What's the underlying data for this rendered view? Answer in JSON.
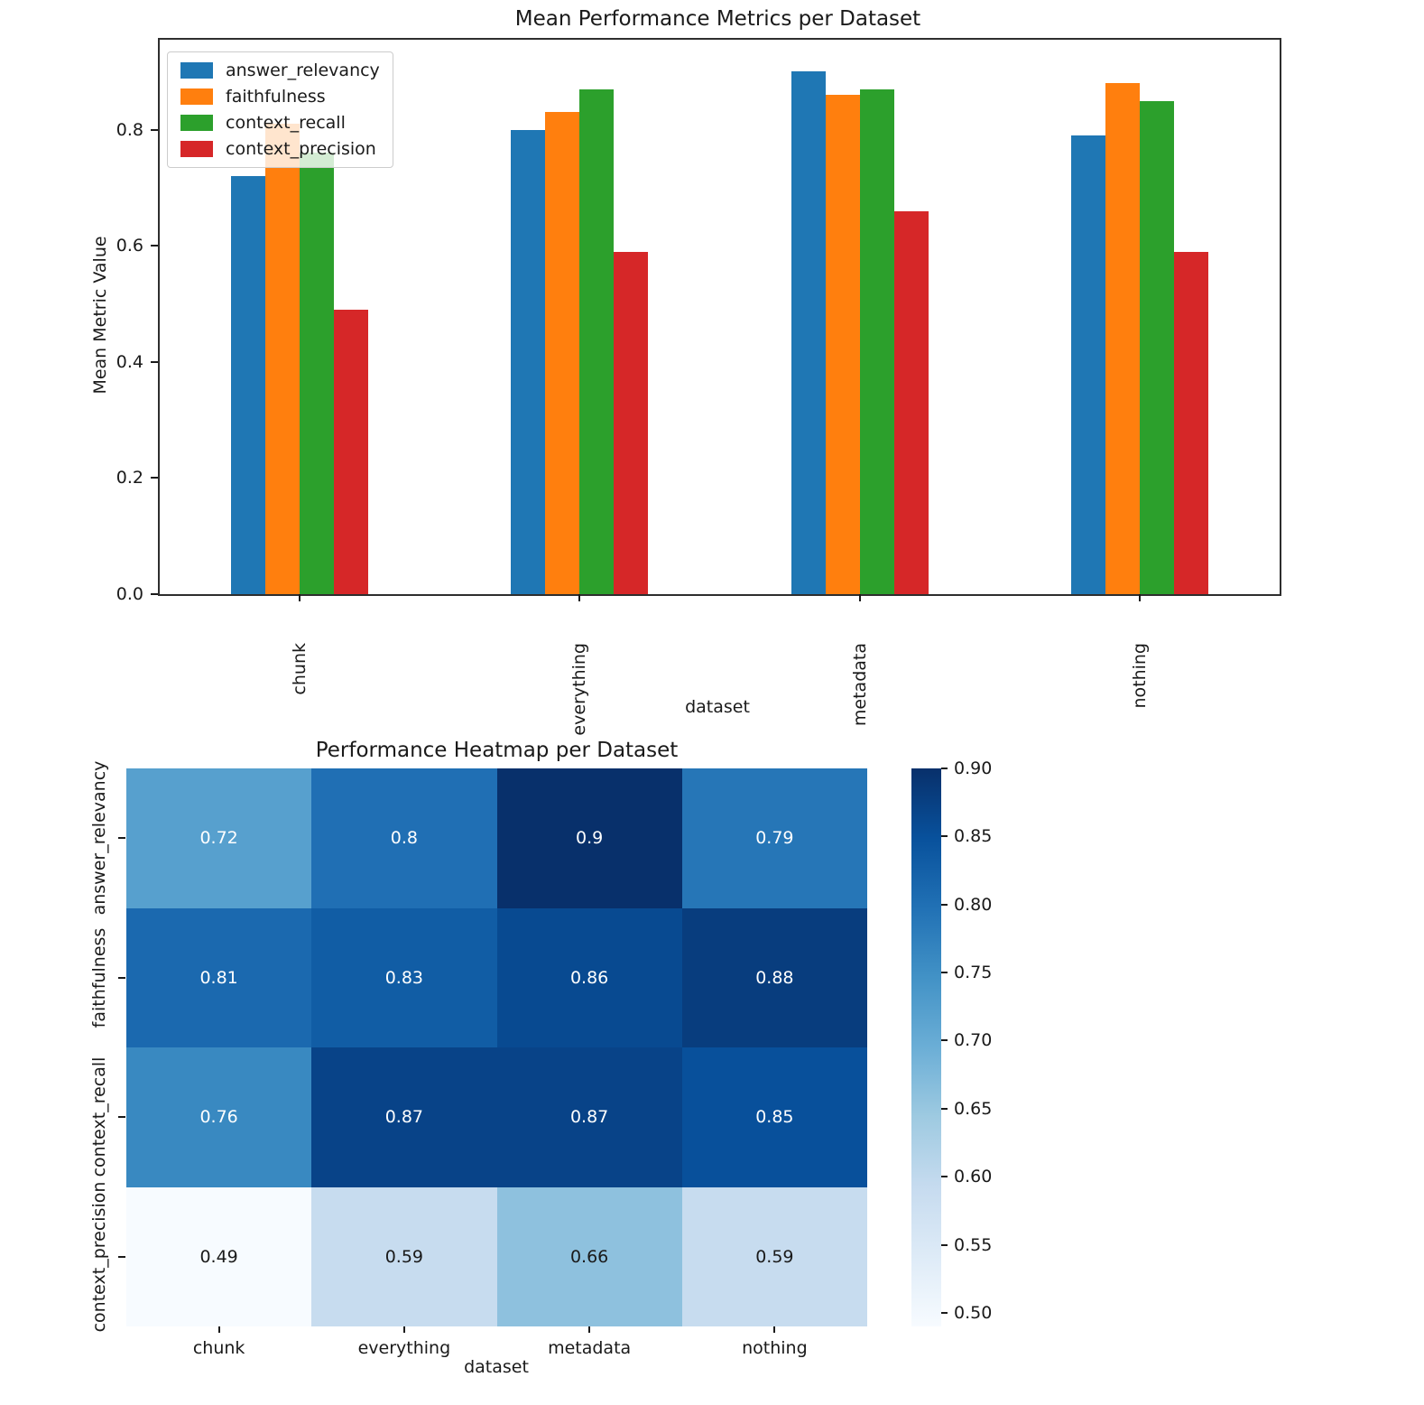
{
  "figure": {
    "background": "#ffffff",
    "text_color": "#1a1a1a",
    "spine_color": "#2e2e2e"
  },
  "chart_data": [
    {
      "type": "bar",
      "title": "Mean Performance Metrics per Dataset",
      "xlabel": "dataset",
      "ylabel": "Mean Metric Value",
      "categories": [
        "chunk",
        "everything",
        "metadata",
        "nothing"
      ],
      "series": [
        {
          "name": "answer_relevancy",
          "color": "#1f77b4",
          "values": [
            0.72,
            0.8,
            0.9,
            0.79
          ]
        },
        {
          "name": "faithfulness",
          "color": "#ff7f0e",
          "values": [
            0.81,
            0.83,
            0.86,
            0.88
          ]
        },
        {
          "name": "context_recall",
          "color": "#2ca02c",
          "values": [
            0.76,
            0.87,
            0.87,
            0.85
          ]
        },
        {
          "name": "context_precision",
          "color": "#d62728",
          "values": [
            0.49,
            0.59,
            0.66,
            0.59
          ]
        }
      ],
      "yticks": [
        "0.0",
        "0.2",
        "0.4",
        "0.6",
        "0.8"
      ],
      "ylim": [
        0,
        0.955
      ],
      "legend_position": "upper left",
      "grid": false
    },
    {
      "type": "heatmap",
      "title": "Performance Heatmap per Dataset",
      "xlabel": "dataset",
      "rows": [
        "answer_relevancy",
        "faithfulness",
        "context_recall",
        "context_precision"
      ],
      "columns": [
        "chunk",
        "everything",
        "metadata",
        "nothing"
      ],
      "values": [
        [
          0.72,
          0.8,
          0.9,
          0.79
        ],
        [
          0.81,
          0.83,
          0.86,
          0.88
        ],
        [
          0.76,
          0.87,
          0.87,
          0.85
        ],
        [
          0.49,
          0.59,
          0.66,
          0.59
        ]
      ],
      "cell_labels": [
        [
          "0.72",
          "0.8",
          "0.9",
          "0.79"
        ],
        [
          "0.81",
          "0.83",
          "0.86",
          "0.88"
        ],
        [
          "0.76",
          "0.87",
          "0.87",
          "0.85"
        ],
        [
          "0.49",
          "0.59",
          "0.66",
          "0.59"
        ]
      ],
      "colormap": "Blues",
      "vmin": 0.49,
      "vmax": 0.9,
      "colorbar_ticks": [
        "0.90",
        "0.85",
        "0.80",
        "0.75",
        "0.70",
        "0.65",
        "0.60",
        "0.55",
        "0.50"
      ],
      "colormap_stops": [
        "#f7fbff",
        "#deebf7",
        "#c6dbef",
        "#9ecae1",
        "#6baed6",
        "#4292c6",
        "#2171b5",
        "#08519c",
        "#08306b"
      ],
      "annotation_colors": {
        "light": "#ffffff",
        "dark": "#1a1a1a"
      }
    }
  ]
}
